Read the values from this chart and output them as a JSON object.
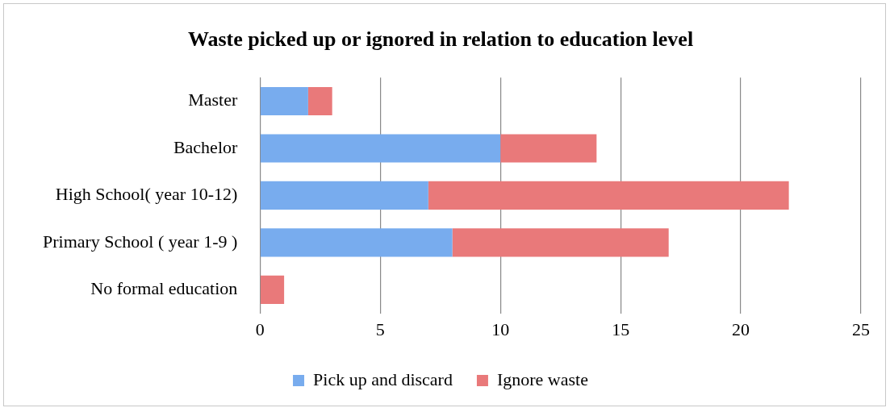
{
  "chart_data": {
    "type": "bar",
    "orientation": "horizontal",
    "stacked": true,
    "title": "Waste picked up or ignored in relation to education level",
    "categories": [
      "Master",
      "Bachelor",
      "High School( year 10-12)",
      "Primary School ( year 1-9 )",
      "No formal education"
    ],
    "series": [
      {
        "name": "Pick up and discard",
        "color": "#78acee",
        "values": [
          2,
          10,
          7,
          8,
          0
        ]
      },
      {
        "name": "Ignore waste",
        "color": "#e9797a",
        "values": [
          1,
          4,
          15,
          9,
          1
        ]
      }
    ],
    "xlim": [
      0,
      25
    ],
    "xticks": [
      0,
      5,
      10,
      15,
      20,
      25
    ],
    "grid": "x",
    "legend": "bottom"
  }
}
